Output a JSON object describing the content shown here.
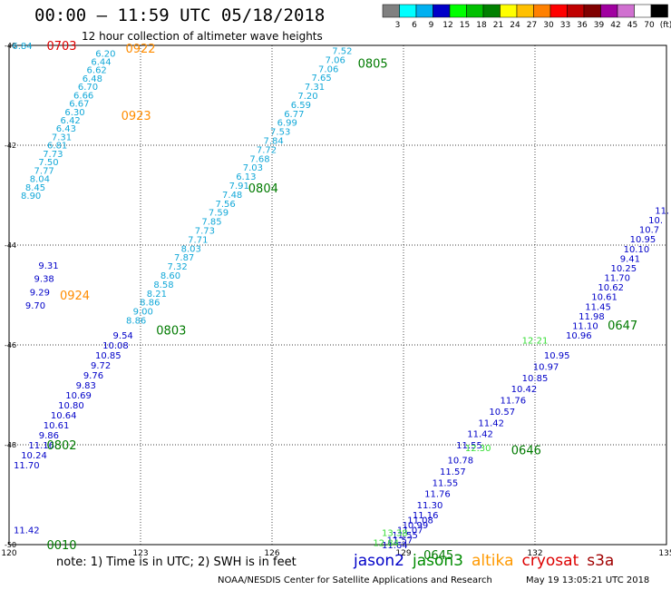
{
  "header": {
    "title": "00:00 – 11:59 UTC 05/18/2018",
    "subtitle": "12 hour collection of altimeter wave heights"
  },
  "color_scale": {
    "bins": [
      {
        "label": "3",
        "color": "#808080"
      },
      {
        "label": "6",
        "color": "#00ffff"
      },
      {
        "label": "9",
        "color": "#00b0f0"
      },
      {
        "label": "12",
        "color": "#0000c8"
      },
      {
        "label": "15",
        "color": "#00ff00"
      },
      {
        "label": "18",
        "color": "#00c000"
      },
      {
        "label": "21",
        "color": "#008000"
      },
      {
        "label": "24",
        "color": "#ffff00"
      },
      {
        "label": "27",
        "color": "#ffc000"
      },
      {
        "label": "30",
        "color": "#ff8000"
      },
      {
        "label": "33",
        "color": "#ff0000"
      },
      {
        "label": "36",
        "color": "#c00000"
      },
      {
        "label": "39",
        "color": "#800000"
      },
      {
        "label": "42",
        "color": "#a000a0"
      },
      {
        "label": "45",
        "color": "#d070d0"
      },
      {
        "label": "70",
        "color": "#ffffff"
      },
      {
        "label": "(ft)",
        "color": "#000000"
      }
    ]
  },
  "chart_data": {
    "type": "scatter",
    "x_ticks": [
      "120",
      "123",
      "126",
      "129",
      "132",
      "135"
    ],
    "y_ticks": [
      "-40",
      "-42",
      "-44",
      "-46",
      "-48",
      "-50"
    ],
    "xlim": [
      120,
      135
    ],
    "ylim": [
      -50,
      -40
    ],
    "grid": true,
    "tracks": [
      {
        "color": "#12a8d8",
        "lon_start": 122.2,
        "lon_end": 120.5,
        "lat_start": -40.15,
        "lat_end": -43.0,
        "values": [
          "6.20",
          "6.44",
          "6.62",
          "6.48",
          "6.70",
          "6.66",
          "6.67",
          "6.30",
          "6.42",
          "6.43",
          "7.31",
          "6.81",
          "7.73",
          "7.50",
          "7.77",
          "8.04",
          "8.45",
          "8.90"
        ]
      },
      {
        "color": "#0000c8",
        "lon_start": 120.9,
        "lon_end": 120.6,
        "lat_start": -44.4,
        "lat_end": -45.2,
        "values": [
          "9.31",
          "9.38",
          "9.29",
          "9.70"
        ]
      },
      {
        "color": "#12a8d8",
        "lon_start": 127.6,
        "lon_end": 122.9,
        "lat_start": -40.1,
        "lat_end": -45.5,
        "values": [
          "7.52",
          "7.06",
          "7.06",
          "7.65",
          "7.31",
          "7.20",
          "6.59",
          "6.77",
          "6.99",
          "7.53",
          "7.84",
          "7.72",
          "7.68",
          "7.03",
          "6.13",
          "7.91",
          "7.48",
          "7.56",
          "7.59",
          "7.85",
          "7.73",
          "7.71",
          "8.03",
          "7.87",
          "7.32",
          "8.60",
          "8.58",
          "8.21",
          "8.86",
          "9.00",
          "8.86"
        ]
      },
      {
        "color": "#0000c8",
        "lon_start": 122.6,
        "lon_end": 120.4,
        "lat_start": -45.8,
        "lat_end": -48.4,
        "values": [
          "9.54",
          "10.08",
          "10.85",
          "9.72",
          "9.76",
          "9.83",
          "10.69",
          "10.80",
          "10.64",
          "10.61",
          "9.86",
          "11.16",
          "10.24",
          "11.70"
        ]
      },
      {
        "color": "#0000c8",
        "lon_start": 134.9,
        "lon_end": 133.0,
        "lat_start": -43.3,
        "lat_end": -45.8,
        "values": [
          "11.",
          "10.",
          "10.7",
          "10.95",
          "10.10",
          "9.41",
          "10.25",
          "11.70",
          "10.62",
          "10.61",
          "11.45",
          "11.98",
          "11.10",
          "10.96"
        ]
      },
      {
        "color": "#0000c8",
        "lon_start": 132.5,
        "lon_end": 130.5,
        "lat_start": -46.2,
        "lat_end": -48.0,
        "values": [
          "10.95",
          "10.97",
          "10.85",
          "10.42",
          "11.76",
          "10.57",
          "11.42",
          "11.42",
          "11.55"
        ]
      },
      {
        "color": "#0000c8",
        "lon_start": 130.3,
        "lon_end": 129.6,
        "lat_start": -48.3,
        "lat_end": -49.2,
        "values": [
          "10.78",
          "11.57",
          "11.55",
          "11.76",
          "11.30"
        ]
      },
      {
        "color": "#0000c8",
        "lon_start": 129.5,
        "lon_end": 128.8,
        "lat_start": -49.4,
        "lat_end": -50.0,
        "values": [
          "11.16",
          "11.08",
          "10.99",
          "11.07",
          "11.55",
          "11.57",
          "11.64"
        ]
      },
      {
        "color": "#0000c8",
        "lon_start": 120.4,
        "lon_end": 120.4,
        "lat_start": -49.7,
        "lat_end": -49.7,
        "values": [
          "11.42"
        ]
      },
      {
        "color": "#12a8d8",
        "lon_start": 120.3,
        "lon_end": 120.3,
        "lat_start": -40.0,
        "lat_end": -40.0,
        "values": [
          "6.84"
        ]
      },
      {
        "color": "#33dd33",
        "lon_start": 132.0,
        "lon_end": 132.0,
        "lat_start": -45.9,
        "lat_end": -45.9,
        "values": [
          "12.21"
        ]
      },
      {
        "color": "#33dd33",
        "lon_start": 130.7,
        "lon_end": 130.7,
        "lat_start": -48.05,
        "lat_end": -48.05,
        "values": [
          "12.30"
        ]
      },
      {
        "color": "#33dd33",
        "lon_start": 128.8,
        "lon_end": 128.6,
        "lat_start": -49.75,
        "lat_end": -49.95,
        "values": [
          "13.38",
          "12.84"
        ]
      }
    ],
    "time_labels": [
      {
        "text": "0703",
        "color": "#dd0000",
        "lon": 121.2,
        "lat": -40.0
      },
      {
        "text": "0922",
        "color": "#ff8c00",
        "lon": 123.0,
        "lat": -40.05
      },
      {
        "text": "0923",
        "color": "#ff8c00",
        "lon": 122.9,
        "lat": -41.4
      },
      {
        "text": "0924",
        "color": "#ff8c00",
        "lon": 121.5,
        "lat": -45.0
      },
      {
        "text": "0805",
        "color": "#007a00",
        "lon": 128.3,
        "lat": -40.35
      },
      {
        "text": "0804",
        "color": "#007a00",
        "lon": 125.8,
        "lat": -42.85
      },
      {
        "text": "0803",
        "color": "#007a00",
        "lon": 123.7,
        "lat": -45.7
      },
      {
        "text": "0802",
        "color": "#007a00",
        "lon": 121.2,
        "lat": -48.0
      },
      {
        "text": "0010",
        "color": "#007a00",
        "lon": 121.2,
        "lat": -50.0
      },
      {
        "text": "0647",
        "color": "#007a00",
        "lon": 134.0,
        "lat": -45.6
      },
      {
        "text": "0646",
        "color": "#007a00",
        "lon": 131.8,
        "lat": -48.1
      },
      {
        "text": "0645",
        "color": "#007a00",
        "lon": 129.8,
        "lat": -50.2
      }
    ]
  },
  "note": "note:  1) Time is in UTC;  2) SWH is in feet",
  "satellites": [
    {
      "name": "jason2",
      "color": "#0000c8"
    },
    {
      "name": "jason3",
      "color": "#008c00"
    },
    {
      "name": "altika",
      "color": "#ff9900"
    },
    {
      "name": "cryosat",
      "color": "#dd0000"
    },
    {
      "name": "s3a",
      "color": "#a00000"
    }
  ],
  "footer": {
    "credit": "NOAA/NESDIS Center for Satellite Applications and Research",
    "timestamp": "May 19 13:05:21 UTC 2018"
  }
}
